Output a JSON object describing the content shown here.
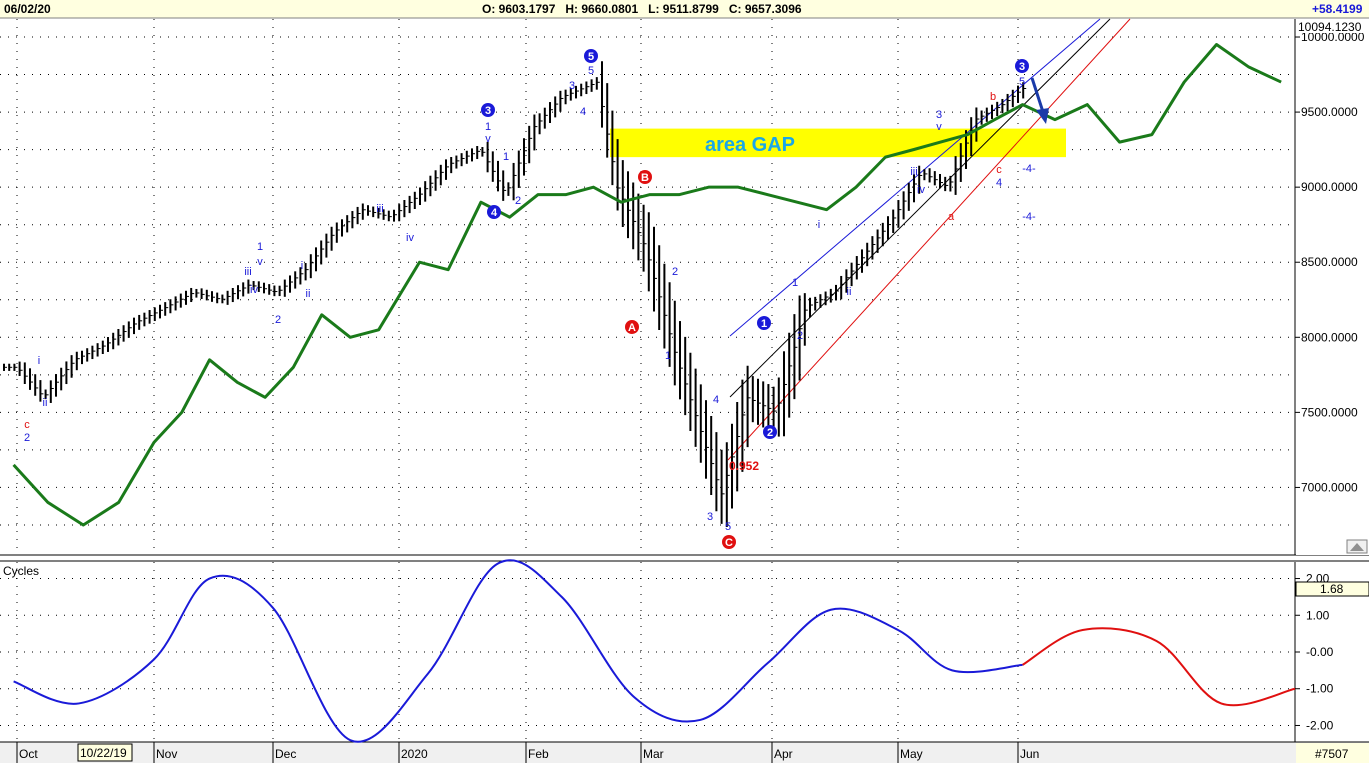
{
  "header": {
    "date": "06/02/20",
    "ohlc": "O: 9603.1797   H: 9660.0801   L: 9511.8799   C: 9657.3096",
    "change": "+58.4199",
    "last_price_tag": "10094.1230"
  },
  "colors": {
    "price_bars": "#000000",
    "moving_average": "#1a7a1a",
    "gap_zone": "#ffff00",
    "channel_upper": "#1a1ad8",
    "channel_mid": "#000000",
    "channel_lower": "#e01010",
    "cycle_past": "#1a1ad8",
    "cycle_projection": "#e01010",
    "wave_blue": "#1a1ad8",
    "wave_red": "#e01010"
  },
  "gap_label": "area GAP",
  "retrace_label": "0.952",
  "panel2_title": "Cycles",
  "cycle_value_tag": "1.68",
  "cursor_date": "10/22/19",
  "symbol_tag": "#7507",
  "x_months": [
    "Oct",
    "Nov",
    "Dec",
    "2020",
    "Feb",
    "Mar",
    "Apr",
    "May",
    "Jun"
  ],
  "chart_data": [
    {
      "type": "line",
      "title": "",
      "ylabel": "",
      "ylim": [
        6550,
        10120
      ],
      "y_ticks": [
        "10000.0000",
        "9500.0000",
        "9000.0000",
        "8500.0000",
        "8000.0000",
        "7500.0000",
        "7000.0000"
      ],
      "y_tick_values": [
        10000,
        9500,
        9000,
        8500,
        8000,
        7500,
        7000
      ],
      "x_labels": [
        "Oct",
        "Nov",
        "Dec",
        "2020",
        "Feb",
        "Mar",
        "Apr",
        "May",
        "Jun"
      ],
      "series": [
        {
          "description": "price bars (approximate daily closes)",
          "x": [
            "2019-10-01",
            "2019-10-07",
            "2019-10-14",
            "2019-10-21",
            "2019-10-28",
            "2019-11-04",
            "2019-11-11",
            "2019-11-18",
            "2019-11-25",
            "2019-12-02",
            "2019-12-09",
            "2019-12-16",
            "2019-12-23",
            "2019-12-30",
            "2020-01-06",
            "2020-01-13",
            "2020-01-21",
            "2020-01-27",
            "2020-02-03",
            "2020-02-10",
            "2020-02-19",
            "2020-02-24",
            "2020-03-02",
            "2020-03-09",
            "2020-03-16",
            "2020-03-20",
            "2020-03-23",
            "2020-03-26",
            "2020-04-02",
            "2020-04-09",
            "2020-04-16",
            "2020-04-23",
            "2020-04-30",
            "2020-05-07",
            "2020-05-14",
            "2020-05-21",
            "2020-05-28",
            "2020-06-02"
          ],
          "values": [
            7800,
            7600,
            7850,
            7950,
            8100,
            8200,
            8300,
            8250,
            8350,
            8300,
            8450,
            8700,
            8850,
            8800,
            8950,
            9150,
            9250,
            8950,
            9400,
            9600,
            9700,
            9000,
            8600,
            7900,
            7300,
            6950,
            7250,
            7600,
            7500,
            8200,
            8300,
            8550,
            8800,
            9100,
            9000,
            9450,
            9550,
            9657
          ]
        },
        {
          "name": "",
          "description": "green moving average",
          "x": [
            "2019-09-30",
            "2019-10-08",
            "2019-10-16",
            "2019-10-24",
            "2019-11-01",
            "2019-11-08",
            "2019-11-15",
            "2019-11-22",
            "2019-11-29",
            "2019-12-06",
            "2019-12-13",
            "2019-12-20",
            "2019-12-27",
            "2020-01-06",
            "2020-01-13",
            "2020-01-21",
            "2020-01-28",
            "2020-02-04",
            "2020-02-11",
            "2020-02-18",
            "2020-02-25",
            "2020-03-03",
            "2020-03-10",
            "2020-03-17",
            "2020-03-24",
            "2020-03-31",
            "2020-04-07",
            "2020-04-14",
            "2020-04-21",
            "2020-04-28",
            "2020-05-05",
            "2020-05-12",
            "2020-05-19",
            "2020-05-26",
            "2020-06-02",
            "2020-06-09",
            "2020-06-16",
            "2020-06-23",
            "2020-06-30",
            "2020-07-07",
            "2020-07-14",
            "2020-07-21",
            "2020-07-28"
          ],
          "values": [
            7150,
            6900,
            6750,
            6900,
            7300,
            7500,
            7850,
            7700,
            7600,
            7800,
            8150,
            8000,
            8050,
            8500,
            8450,
            8900,
            8800,
            8950,
            8950,
            9000,
            8900,
            8950,
            8950,
            9000,
            9000,
            8950,
            8900,
            8850,
            9000,
            9200,
            9250,
            9300,
            9350,
            9450,
            9550,
            9450,
            9550,
            9300,
            9350,
            9700,
            9950,
            9800,
            9700
          ]
        }
      ],
      "annotations": {
        "gap_zone": [
          9200,
          9390
        ],
        "circled_waves": [
          "1",
          "2",
          "3",
          "3",
          "4",
          "5",
          "A",
          "B",
          "C"
        ],
        "wave_labels": [
          "i",
          "ii",
          "iii",
          "iv",
          "v",
          "1",
          "2",
          "3",
          "4",
          "5",
          "a",
          "b",
          "c",
          "-4-"
        ]
      }
    },
    {
      "type": "line",
      "title": "Cycles",
      "ylim": [
        -2.45,
        2.45
      ],
      "y_ticks": [
        "2.00",
        "1.00",
        "-0.00",
        "-1.00",
        "-2.00"
      ],
      "y_tick_values": [
        2,
        1,
        0,
        -1,
        -2
      ],
      "last_value": 1.68,
      "series": [
        {
          "name": "",
          "description": "cycle (history, blue)",
          "x": [
            "2019-09-30",
            "2019-10-15",
            "2019-11-01",
            "2019-11-15",
            "2019-12-01",
            "2019-12-20",
            "2020-01-08",
            "2020-01-25",
            "2020-02-10",
            "2020-02-28",
            "2020-03-15",
            "2020-03-31",
            "2020-04-15",
            "2020-05-01",
            "2020-05-15",
            "2020-06-02"
          ],
          "values": [
            -0.8,
            -1.4,
            -0.2,
            2.0,
            1.2,
            -2.4,
            -0.6,
            2.4,
            1.5,
            -1.2,
            -1.85,
            -0.3,
            1.15,
            0.6,
            -0.5,
            -0.35
          ]
        },
        {
          "name": "",
          "description": "cycle projection (red)",
          "x": [
            "2020-06-02",
            "2020-06-15",
            "2020-07-01",
            "2020-07-15",
            "2020-07-31"
          ],
          "values": [
            -0.35,
            0.6,
            0.3,
            -1.4,
            -1.0
          ]
        }
      ]
    }
  ]
}
